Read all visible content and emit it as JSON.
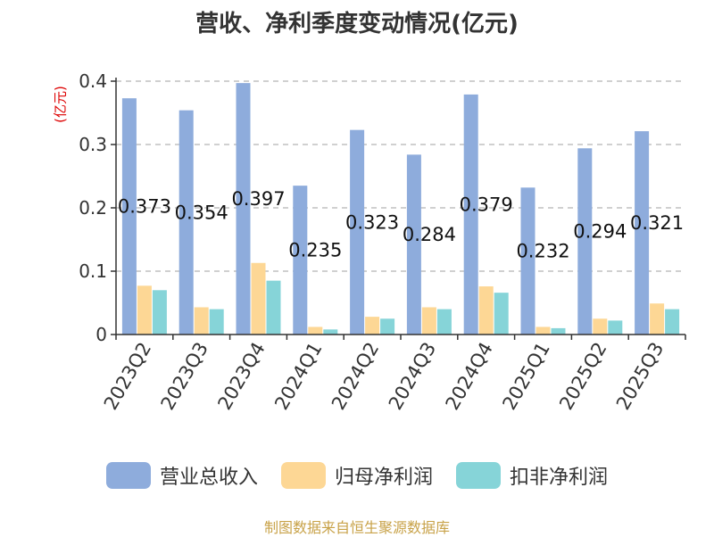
{
  "title": "营收、净利季度变动情况(亿元)",
  "unit_label": "(亿元)",
  "source_note": "制图数据来自恒生聚源数据库",
  "colors": {
    "revenue": "#8eacdc",
    "net_profit": "#fdd795",
    "deducted_net_profit": "#86d4d8",
    "grid": "#b5b5b5",
    "axis": "#333333"
  },
  "chart_data": {
    "type": "bar",
    "title": "营收、净利季度变动情况(亿元)",
    "ylabel": "(亿元)",
    "xlabel": "",
    "ylim": [
      0,
      0.4
    ],
    "yticks": [
      "0",
      "0.1",
      "0.2",
      "0.3",
      "0.4"
    ],
    "grid": true,
    "legend_position": "bottom",
    "categories": [
      "2023Q2",
      "2023Q3",
      "2023Q4",
      "2024Q1",
      "2024Q2",
      "2024Q3",
      "2024Q4",
      "2025Q1",
      "2025Q2",
      "2025Q3"
    ],
    "series": [
      {
        "name": "营业总收入",
        "values": [
          0.373,
          0.354,
          0.397,
          0.235,
          0.323,
          0.284,
          0.379,
          0.232,
          0.294,
          0.321
        ],
        "labels": [
          "0.373",
          "0.354",
          "0.397",
          "0.235",
          "0.323",
          "0.284",
          "0.379",
          "0.232",
          "0.294",
          "0.321"
        ]
      },
      {
        "name": "归母净利润",
        "values": [
          0.077,
          0.043,
          0.113,
          0.012,
          0.028,
          0.043,
          0.076,
          0.012,
          0.025,
          0.049
        ]
      },
      {
        "name": "扣非净利润",
        "values": [
          0.07,
          0.04,
          0.085,
          0.008,
          0.025,
          0.04,
          0.066,
          0.01,
          0.022,
          0.04
        ]
      }
    ]
  }
}
